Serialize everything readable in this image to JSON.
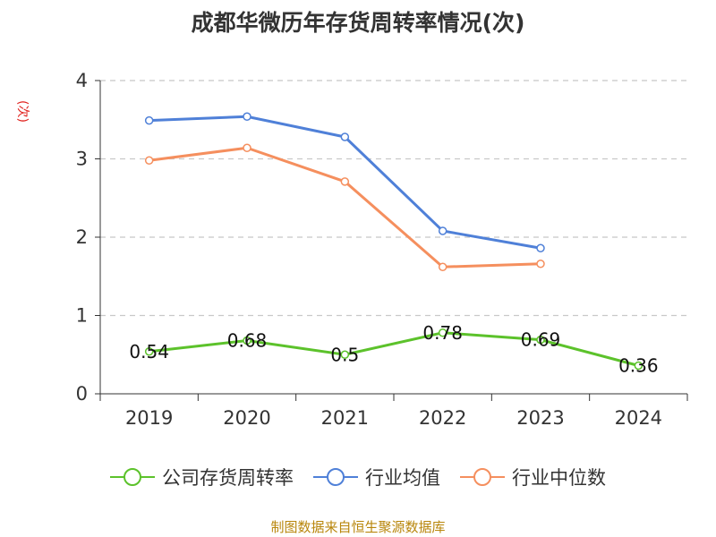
{
  "chart_data": {
    "type": "line",
    "title": "成都华微历年存货周转率情况(次)",
    "ylabel": "(次)",
    "categories": [
      "2019",
      "2020",
      "2021",
      "2022",
      "2023",
      "2024"
    ],
    "ylim": [
      0,
      4
    ],
    "yticks": [
      0,
      1,
      2,
      3,
      4
    ],
    "grid": true,
    "legend_position": "bottom",
    "series": [
      {
        "name": "公司存货周转率",
        "color": "#5cc22b",
        "values": [
          0.54,
          0.68,
          0.5,
          0.78,
          0.69,
          0.36
        ],
        "labels": [
          "0.54",
          "0.68",
          "0.5",
          "0.78",
          "0.69",
          "0.36"
        ]
      },
      {
        "name": "行业均值",
        "color": "#4f80d8",
        "values": [
          3.49,
          3.54,
          3.28,
          2.08,
          1.86,
          null
        ]
      },
      {
        "name": "行业中位数",
        "color": "#f58f5e",
        "values": [
          2.98,
          3.14,
          2.71,
          1.62,
          1.66,
          null
        ]
      }
    ]
  },
  "source": "制图数据来自恒生聚源数据库"
}
